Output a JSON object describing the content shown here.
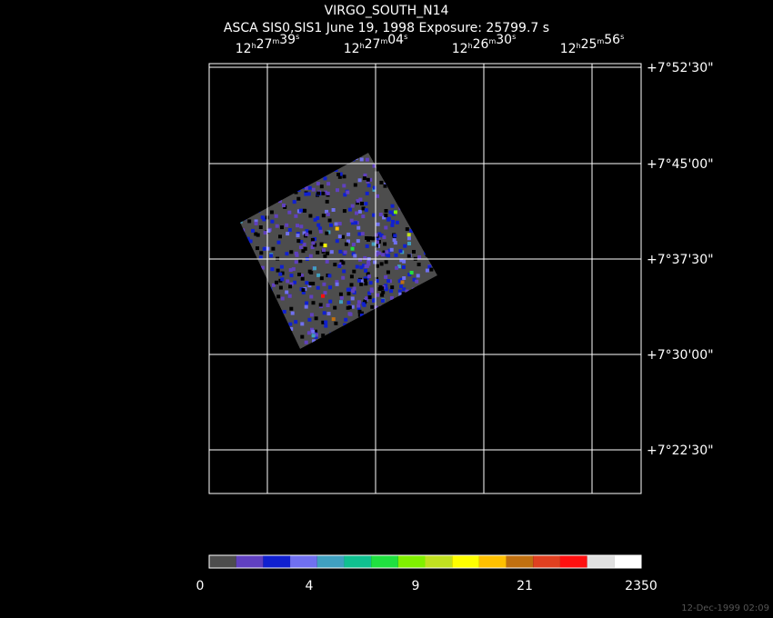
{
  "header": {
    "title": "VIRGO_SOUTH_N14",
    "subtitle": "ASCA SIS0,SIS1 June 19, 1998 Exposure: 25799.7 s"
  },
  "ra_axis": {
    "units": [
      "h",
      "m",
      "s"
    ],
    "labels": [
      [
        "12",
        "27",
        "39"
      ],
      [
        "12",
        "27",
        "04"
      ],
      [
        "12",
        "26",
        "30"
      ],
      [
        "12",
        "25",
        "56"
      ]
    ]
  },
  "dec_axis": {
    "labels": [
      "+7°52'30\"",
      "+7°45'00\"",
      "+7°37'30\"",
      "+7°30'00\"",
      "+7°22'30\""
    ]
  },
  "colorbar": {
    "colors": [
      "#4d4d4d",
      "#6040c0",
      "#1020d0",
      "#7070f0",
      "#40a0c0",
      "#10c090",
      "#20e040",
      "#80f000",
      "#c0e020",
      "#ffff00",
      "#ffc000",
      "#c07010",
      "#e04020",
      "#ff1010",
      "#e0e0e0",
      "#ffffff"
    ],
    "labels": [
      "0",
      "4",
      "9",
      "21",
      "2350"
    ]
  },
  "footer": {
    "timestamp": "12-Dec-1999 02:09"
  }
}
